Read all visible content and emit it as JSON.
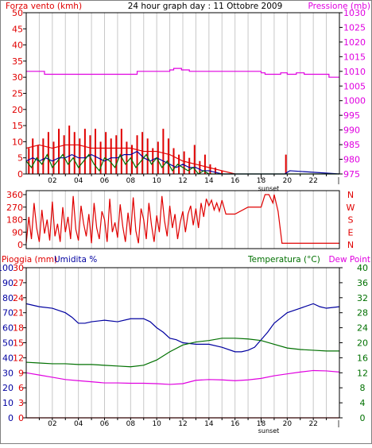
{
  "header": {
    "left_label": "Forza vento (kmh)",
    "title": "24 hour graph day : 11 Ottobre 2009",
    "right_label": "Pressione (mb)"
  },
  "colors": {
    "red": "#e00000",
    "blue": "#0000a0",
    "green": "#007000",
    "magenta": "#e000e0",
    "gridline": "#c8c8c8",
    "frame": "#000000"
  },
  "x_axis": {
    "ticks": [
      {
        "hour": 2,
        "label": "02"
      },
      {
        "hour": 4,
        "label": "04"
      },
      {
        "hour": 6,
        "label": "06"
      },
      {
        "hour": 8,
        "label": "08"
      },
      {
        "hour": 10,
        "label": "10"
      },
      {
        "hour": 12,
        "label": "12"
      },
      {
        "hour": 14,
        "label": "14"
      },
      {
        "hour": 16,
        "label": "16"
      },
      {
        "hour": 18,
        "label": "18"
      },
      {
        "hour": 20,
        "label": "20"
      },
      {
        "hour": 22,
        "label": "22"
      }
    ],
    "sunset_label": "sunset",
    "sunset_hour": 18
  },
  "chart_data": [
    {
      "type": "line",
      "name": "wind-pressure",
      "left_axis": {
        "label": "Forza vento (kmh)",
        "range": [
          0,
          50
        ],
        "ticks": [
          "0",
          "5",
          "10",
          "15",
          "20",
          "25",
          "30",
          "35",
          "40",
          "45",
          "50"
        ]
      },
      "right_axis": {
        "label": "Pressione (mb)",
        "range": [
          975,
          1030
        ],
        "ticks": [
          "975",
          "980",
          "985",
          "990",
          "995",
          "1000",
          "1005",
          "1010",
          "1015",
          "1020",
          "1025",
          "1030"
        ]
      },
      "x_range": [
        0,
        24
      ],
      "grid": true,
      "series": [
        {
          "name": "",
          "color": "red",
          "axis": "left",
          "style": "bars",
          "x": [
            0.2,
            0.5,
            0.9,
            1.3,
            1.7,
            2.1,
            2.5,
            2.9,
            3.3,
            3.7,
            4.1,
            4.5,
            4.9,
            5.3,
            5.7,
            6.1,
            6.5,
            6.9,
            7.3,
            7.7,
            8.1,
            8.5,
            8.9,
            9.3,
            9.7,
            10.1,
            10.5,
            10.9,
            11.3,
            11.7,
            12.1,
            12.5,
            12.9,
            13.3,
            13.7,
            14.1,
            14.5,
            15.0,
            19.9
          ],
          "y": [
            8,
            11,
            9,
            11,
            13,
            10,
            14,
            12,
            15,
            13,
            11,
            14,
            12,
            14,
            10,
            13,
            11,
            12,
            14,
            10,
            9,
            12,
            13,
            11,
            8,
            10,
            14,
            11,
            8,
            6,
            7,
            5,
            9,
            4,
            6,
            3,
            2,
            1,
            6
          ]
        },
        {
          "name": "",
          "color": "red",
          "axis": "left",
          "style": "line",
          "x": [
            0,
            1,
            2,
            3,
            4,
            5,
            6,
            7,
            8,
            9,
            10,
            11,
            12,
            13,
            14,
            15,
            16
          ],
          "y": [
            8,
            9,
            8,
            9,
            9,
            8,
            8,
            8,
            8,
            7,
            7,
            6,
            4,
            3,
            2,
            1,
            0
          ]
        },
        {
          "name": "",
          "color": "blue",
          "axis": "left",
          "style": "line",
          "x": [
            0,
            0.5,
            1,
            1.5,
            2,
            2.5,
            3,
            3.5,
            4,
            4.5,
            5,
            5.5,
            6,
            6.5,
            7,
            7.5,
            8,
            8.5,
            9,
            9.5,
            10,
            10.5,
            11,
            11.5,
            12,
            12.5,
            13,
            13.5,
            14,
            14.5,
            15,
            16,
            19.8,
            20.2,
            24
          ],
          "y": [
            4,
            5,
            4,
            5,
            4,
            5,
            5,
            6,
            5,
            5,
            6,
            5,
            4,
            5,
            5,
            6,
            6,
            7,
            5,
            4,
            5,
            4,
            3,
            2,
            3,
            2,
            2,
            1,
            1,
            0.5,
            0,
            0,
            0,
            1,
            0
          ]
        },
        {
          "name": "",
          "color": "green",
          "axis": "left",
          "style": "line",
          "x": [
            0,
            0.4,
            0.8,
            1.2,
            1.6,
            2,
            2.4,
            2.8,
            3.2,
            3.6,
            4,
            4.4,
            4.8,
            5.2,
            5.6,
            6,
            6.4,
            6.8,
            7.2,
            7.6,
            8,
            8.4,
            8.8,
            9.2,
            9.6,
            10,
            10.4,
            10.8,
            11.2,
            11.6,
            12,
            12.4,
            12.8,
            13.2,
            13.6,
            14,
            14.4,
            15,
            16,
            20,
            24
          ],
          "y": [
            4,
            2,
            5,
            3,
            6,
            2,
            4,
            6,
            3,
            5,
            2,
            4,
            6,
            3,
            1,
            5,
            4,
            2,
            6,
            3,
            5,
            2,
            4,
            6,
            3,
            5,
            2,
            4,
            1,
            3,
            2,
            1,
            2,
            0,
            1,
            0,
            0,
            0,
            0,
            0,
            0
          ]
        },
        {
          "name": "",
          "color": "magenta",
          "axis": "right",
          "style": "step",
          "x": [
            0,
            1.4,
            2,
            4,
            6,
            8,
            8.5,
            9.5,
            10,
            10.5,
            11,
            11.3,
            11.9,
            12.5,
            14,
            16,
            18,
            18.3,
            19,
            19.5,
            20,
            20.7,
            21.3,
            22,
            22.8,
            23.2,
            24
          ],
          "y": [
            1010,
            1009,
            1009,
            1009,
            1009,
            1009,
            1010,
            1010,
            1010,
            1010,
            1010.5,
            1011,
            1010.5,
            1010,
            1010,
            1010,
            1009.5,
            1009,
            1009,
            1009.5,
            1009,
            1009.5,
            1009,
            1009,
            1009,
            1008,
            1008
          ]
        }
      ]
    },
    {
      "type": "line",
      "name": "wind-direction",
      "left_axis": {
        "range": [
          0,
          360
        ],
        "ticks": [
          "0",
          "90",
          "180",
          "270",
          "360"
        ]
      },
      "right_axis": {
        "ticks": [
          "N",
          "E",
          "S",
          "W",
          "N"
        ]
      },
      "x_range": [
        0,
        24
      ],
      "grid": true,
      "series": [
        {
          "name": "",
          "color": "red",
          "axis": "left",
          "style": "line",
          "x": [
            0,
            0.2,
            0.4,
            0.6,
            0.8,
            1.0,
            1.2,
            1.4,
            1.6,
            1.8,
            2.0,
            2.2,
            2.4,
            2.6,
            2.8,
            3.0,
            3.2,
            3.4,
            3.6,
            3.8,
            4.0,
            4.2,
            4.4,
            4.6,
            4.8,
            5.0,
            5.2,
            5.4,
            5.6,
            5.8,
            6.0,
            6.2,
            6.4,
            6.6,
            6.8,
            7.0,
            7.2,
            7.4,
            7.6,
            7.8,
            8.0,
            8.2,
            8.4,
            8.6,
            8.8,
            9.0,
            9.2,
            9.4,
            9.6,
            9.8,
            10.0,
            10.2,
            10.4,
            10.6,
            10.8,
            11.0,
            11.2,
            11.4,
            11.6,
            11.8,
            12.0,
            12.2,
            12.4,
            12.6,
            12.8,
            13.0,
            13.2,
            13.4,
            13.6,
            13.8,
            14.0,
            14.2,
            14.4,
            14.6,
            14.8,
            15.0,
            15.3,
            16,
            17,
            18,
            18.3,
            18.6,
            18.9,
            19.0,
            19.3,
            19.6,
            20,
            22,
            24
          ],
          "y": [
            10,
            200,
            40,
            300,
            120,
            20,
            250,
            80,
            180,
            30,
            310,
            60,
            150,
            20,
            270,
            90,
            200,
            40,
            350,
            110,
            30,
            280,
            150,
            60,
            220,
            10,
            300,
            120,
            40,
            240,
            180,
            20,
            330,
            90,
            160,
            50,
            290,
            130,
            20,
            230,
            70,
            340,
            100,
            10,
            260,
            180,
            40,
            300,
            140,
            20,
            210,
            90,
            350,
            170,
            60,
            280,
            120,
            220,
            40,
            160,
            240,
            90,
            220,
            280,
            140,
            260,
            120,
            300,
            200,
            330,
            280,
            320,
            250,
            300,
            240,
            320,
            220,
            220,
            270,
            270,
            360,
            360,
            300,
            360,
            240,
            10,
            10,
            10,
            10
          ]
        }
      ]
    },
    {
      "type": "line",
      "name": "rain-humidity-temperature",
      "left_axes": [
        {
          "label": "Pioggia (mm)",
          "range": [
            0,
            30
          ],
          "ticks": [
            "0",
            "3",
            "6",
            "9",
            "12",
            "15",
            "18",
            "21",
            "24",
            "27",
            "30"
          ]
        },
        {
          "label": "Umidita %",
          "range": [
            0,
            100
          ],
          "ticks": [
            "0",
            "10",
            "20",
            "30",
            "40",
            "50",
            "60",
            "70",
            "80",
            "90",
            "100"
          ]
        }
      ],
      "right_axis": {
        "label": "Temperatura (°C)",
        "range": [
          0,
          40
        ],
        "ticks": [
          "0",
          "4",
          "8",
          "12",
          "16",
          "20",
          "24",
          "28",
          "32",
          "36",
          "40"
        ]
      },
      "right_label_2": "Dew Point",
      "x_range": [
        0,
        24
      ],
      "grid": true,
      "series": [
        {
          "name": "Umidita %",
          "color": "blue",
          "axis": "humidity",
          "style": "line",
          "x": [
            0,
            1,
            2,
            3,
            3.5,
            4,
            4.5,
            5,
            6,
            7,
            8,
            9,
            9.5,
            10,
            10.5,
            11,
            11.5,
            12,
            13,
            14,
            15,
            16,
            16.5,
            17,
            17.5,
            18,
            18.5,
            19,
            20,
            21,
            22,
            22.5,
            23,
            24
          ],
          "y": [
            76,
            74,
            73,
            70,
            67,
            63,
            63,
            64,
            65,
            64,
            66,
            66,
            64,
            60,
            57,
            53,
            52,
            50,
            49,
            49,
            47,
            44,
            44,
            45,
            47,
            52,
            57,
            63,
            70,
            73,
            76,
            74,
            73,
            74
          ]
        },
        {
          "name": "Temperatura (°C)",
          "color": "green",
          "axis": "right",
          "style": "line",
          "x": [
            0,
            1,
            2,
            3,
            4,
            5,
            6,
            7,
            8,
            9,
            10,
            11,
            12,
            13,
            14,
            15,
            16,
            17,
            18,
            19,
            20,
            21,
            22,
            23,
            24
          ],
          "y": [
            14.8,
            14.6,
            14.4,
            14.4,
            14.2,
            14.2,
            14.0,
            13.8,
            13.6,
            14.0,
            15.4,
            17.6,
            19.4,
            20.2,
            20.6,
            21.2,
            21.2,
            21.0,
            20.6,
            19.6,
            18.6,
            18.2,
            18.0,
            17.8,
            17.8
          ]
        },
        {
          "name": "Dew Point",
          "color": "magenta",
          "axis": "right",
          "style": "line",
          "x": [
            0,
            1,
            2,
            3,
            4,
            5,
            6,
            7,
            8,
            9,
            10,
            11,
            12,
            13,
            14,
            15,
            16,
            17,
            18,
            19,
            20,
            21,
            22,
            23,
            24
          ],
          "y": [
            12.0,
            11.4,
            10.8,
            10.2,
            9.9,
            9.6,
            9.3,
            9.3,
            9.2,
            9.2,
            9.1,
            8.9,
            9.1,
            10.0,
            10.2,
            10.1,
            9.9,
            10.1,
            10.5,
            11.2,
            11.7,
            12.2,
            12.6,
            12.5,
            12.2
          ]
        },
        {
          "name": "Pioggia (mm)",
          "color": "red",
          "axis": "rain",
          "style": "line",
          "x": [
            0,
            24
          ],
          "y": [
            0,
            0
          ]
        }
      ]
    }
  ]
}
